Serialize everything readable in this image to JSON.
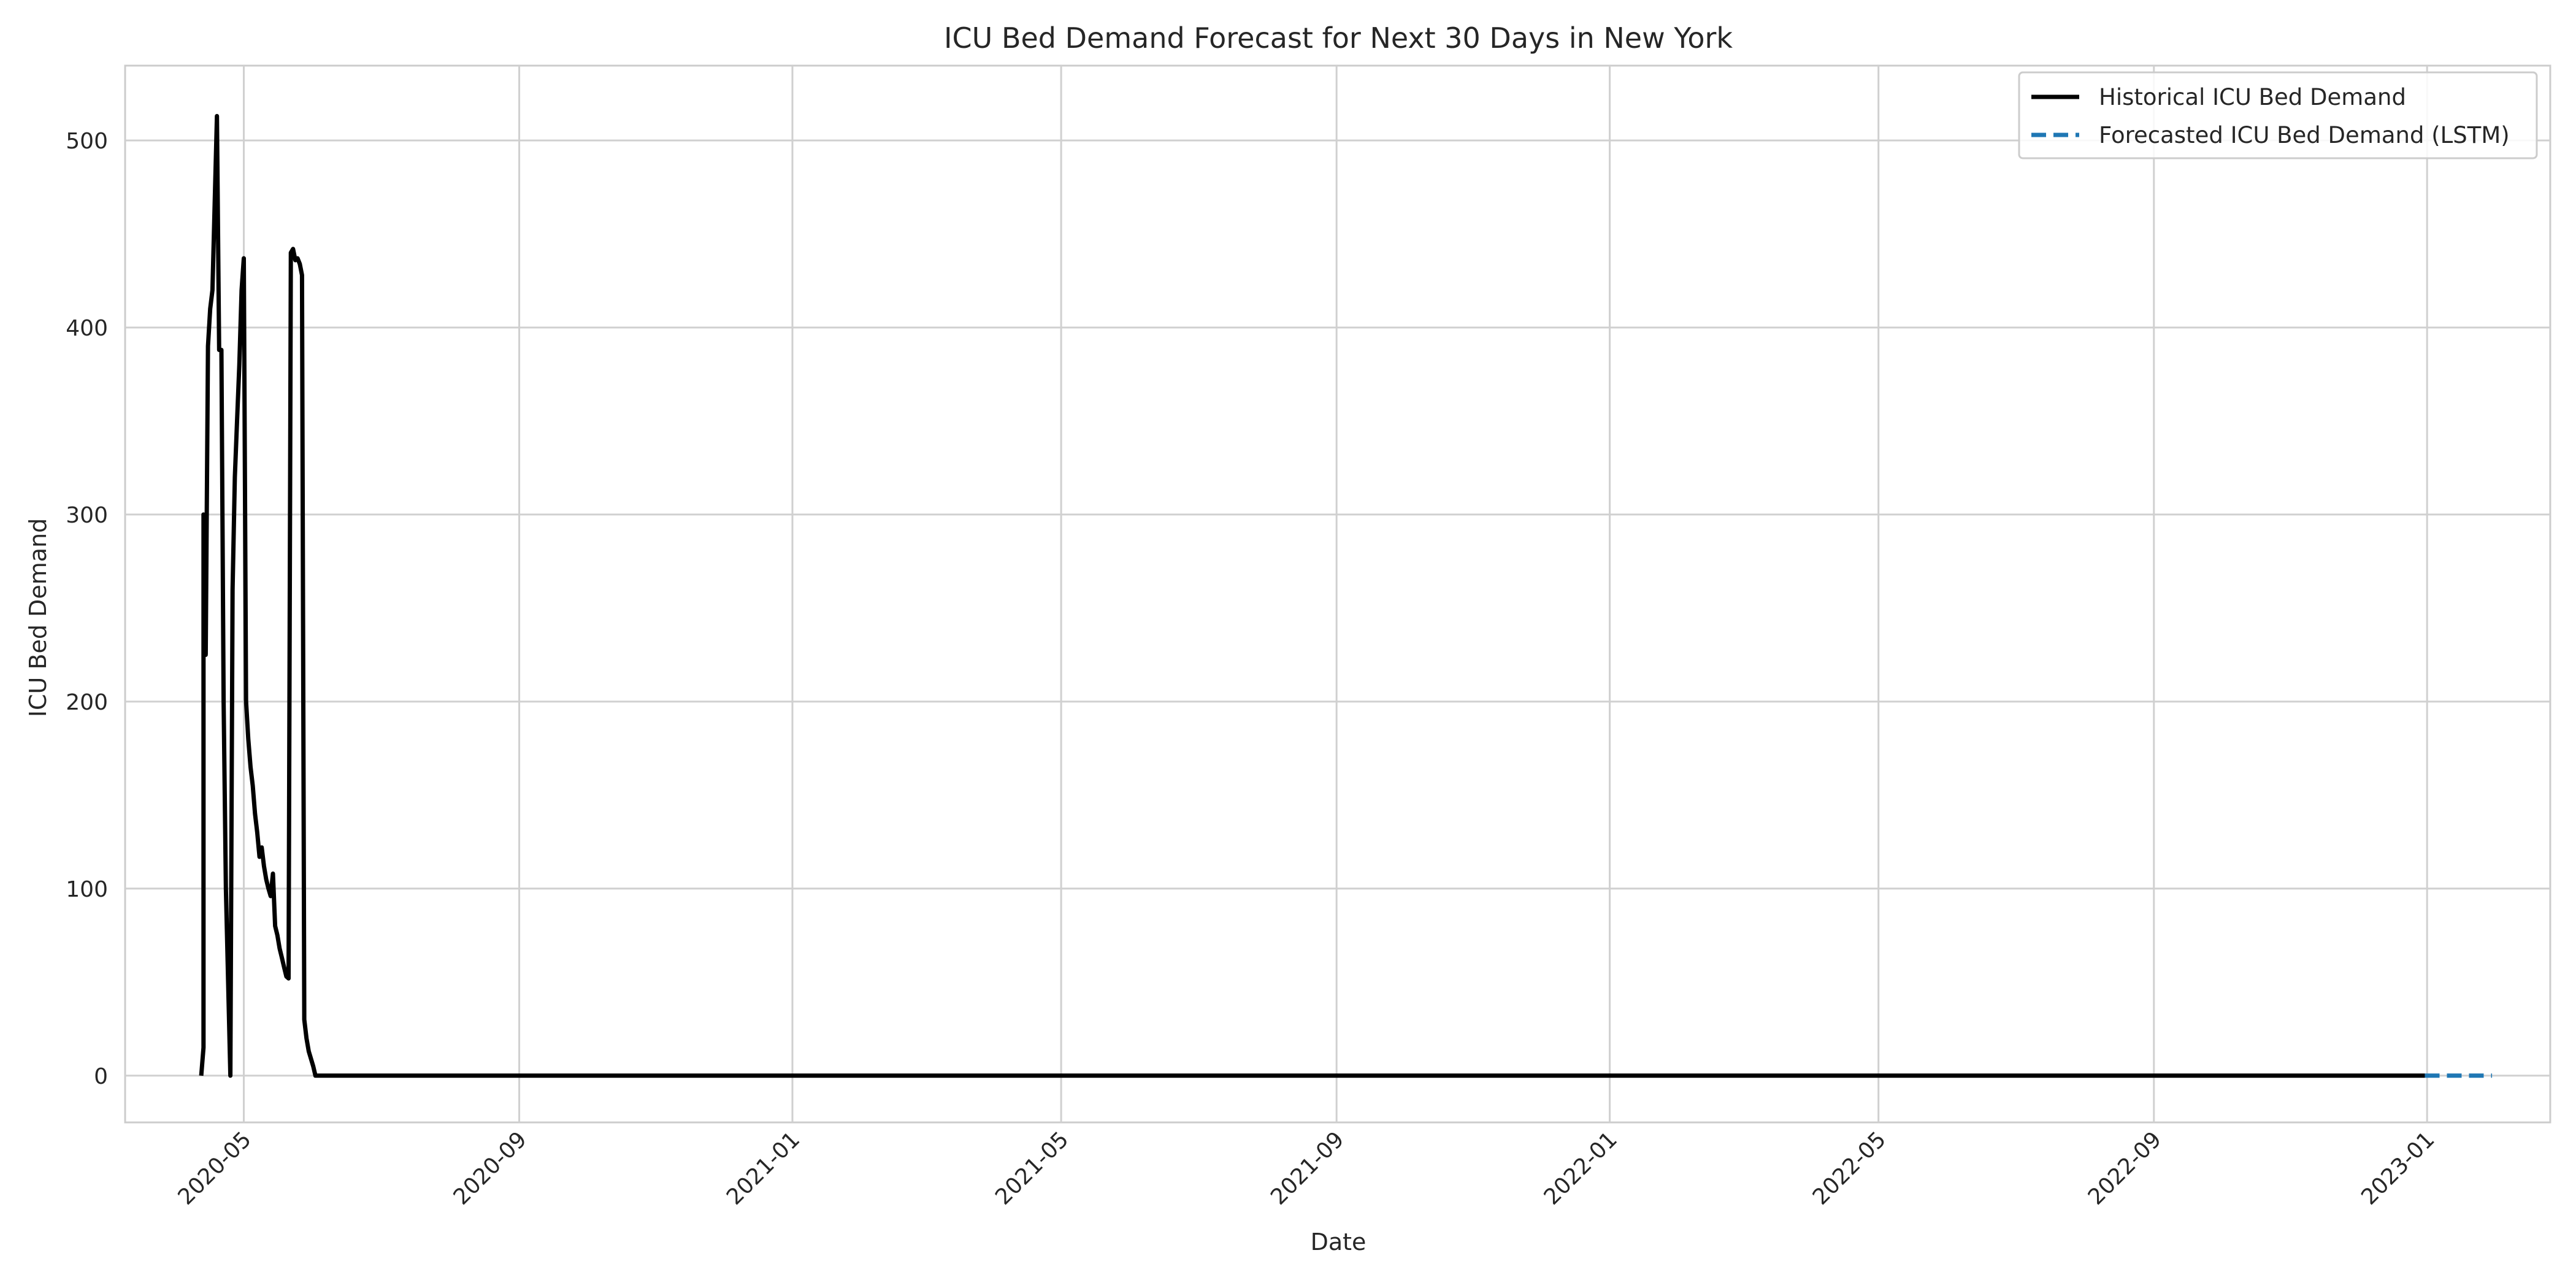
{
  "chart_data": {
    "type": "line",
    "title": "ICU Bed Demand Forecast for Next 30 Days in New York",
    "xlabel": "Date",
    "ylabel": "ICU Bed Demand",
    "xlim": [
      "2020-03-09",
      "2023-02-25"
    ],
    "ylim": [
      -25,
      540
    ],
    "xticks": [
      "2020-05",
      "2020-09",
      "2021-01",
      "2021-05",
      "2021-09",
      "2022-01",
      "2022-05",
      "2022-09",
      "2023-01"
    ],
    "yticks": [
      0,
      100,
      200,
      300,
      400,
      500
    ],
    "grid": true,
    "legend": {
      "position": "top-right"
    },
    "series": [
      {
        "name": "Historical ICU Bed Demand",
        "color": "#000000",
        "style": "solid",
        "points": [
          [
            "2020-04-12",
            0
          ],
          [
            "2020-04-13",
            15
          ],
          [
            "2020-04-13",
            300
          ],
          [
            "2020-04-14",
            225
          ],
          [
            "2020-04-15",
            390
          ],
          [
            "2020-04-16",
            410
          ],
          [
            "2020-04-17",
            420
          ],
          [
            "2020-04-19",
            513
          ],
          [
            "2020-04-20",
            388
          ],
          [
            "2020-04-21",
            388
          ],
          [
            "2020-04-22",
            200
          ],
          [
            "2020-04-23",
            100
          ],
          [
            "2020-04-25",
            0
          ],
          [
            "2020-04-26",
            260
          ],
          [
            "2020-04-27",
            320
          ],
          [
            "2020-04-28",
            350
          ],
          [
            "2020-04-29",
            380
          ],
          [
            "2020-04-30",
            420
          ],
          [
            "2020-05-01",
            437
          ],
          [
            "2020-05-02",
            200
          ],
          [
            "2020-05-03",
            180
          ],
          [
            "2020-05-04",
            165
          ],
          [
            "2020-05-05",
            155
          ],
          [
            "2020-05-06",
            140
          ],
          [
            "2020-05-07",
            130
          ],
          [
            "2020-05-08",
            117
          ],
          [
            "2020-05-09",
            122
          ],
          [
            "2020-05-10",
            112
          ],
          [
            "2020-05-11",
            105
          ],
          [
            "2020-05-12",
            100
          ],
          [
            "2020-05-13",
            96
          ],
          [
            "2020-05-14",
            108
          ],
          [
            "2020-05-15",
            80
          ],
          [
            "2020-05-16",
            75
          ],
          [
            "2020-05-17",
            68
          ],
          [
            "2020-05-18",
            63
          ],
          [
            "2020-05-19",
            58
          ],
          [
            "2020-05-20",
            53
          ],
          [
            "2020-05-21",
            52
          ],
          [
            "2020-05-22",
            440
          ],
          [
            "2020-05-23",
            442
          ],
          [
            "2020-05-24",
            436
          ],
          [
            "2020-05-25",
            437
          ],
          [
            "2020-05-26",
            434
          ],
          [
            "2020-05-27",
            428
          ],
          [
            "2020-05-28",
            30
          ],
          [
            "2020-05-29",
            20
          ],
          [
            "2020-05-30",
            13
          ],
          [
            "2020-06-01",
            5
          ],
          [
            "2020-06-02",
            0
          ],
          [
            "2022-12-31",
            0
          ]
        ]
      },
      {
        "name": "Forecasted ICU Bed Demand (LSTM)",
        "color": "#1f77b4",
        "style": "dashed",
        "points": [
          [
            "2022-12-31",
            0
          ],
          [
            "2023-01-30",
            0
          ]
        ]
      }
    ]
  }
}
